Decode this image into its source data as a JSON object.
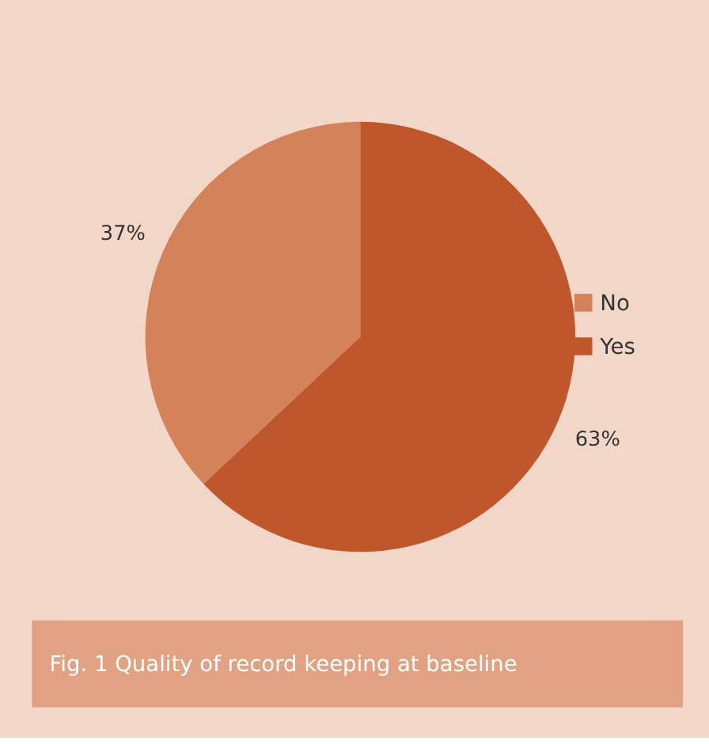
{
  "chart_data": {
    "type": "pie",
    "categories": [
      "No",
      "Yes"
    ],
    "values": [
      37,
      63
    ],
    "colors": [
      "#d4825a",
      "#c0562b"
    ],
    "value_labels": [
      "37%",
      "63%"
    ],
    "legend": "right",
    "annotations": [
      "Fig. 1  Quality of record keeping at baseline"
    ]
  }
}
